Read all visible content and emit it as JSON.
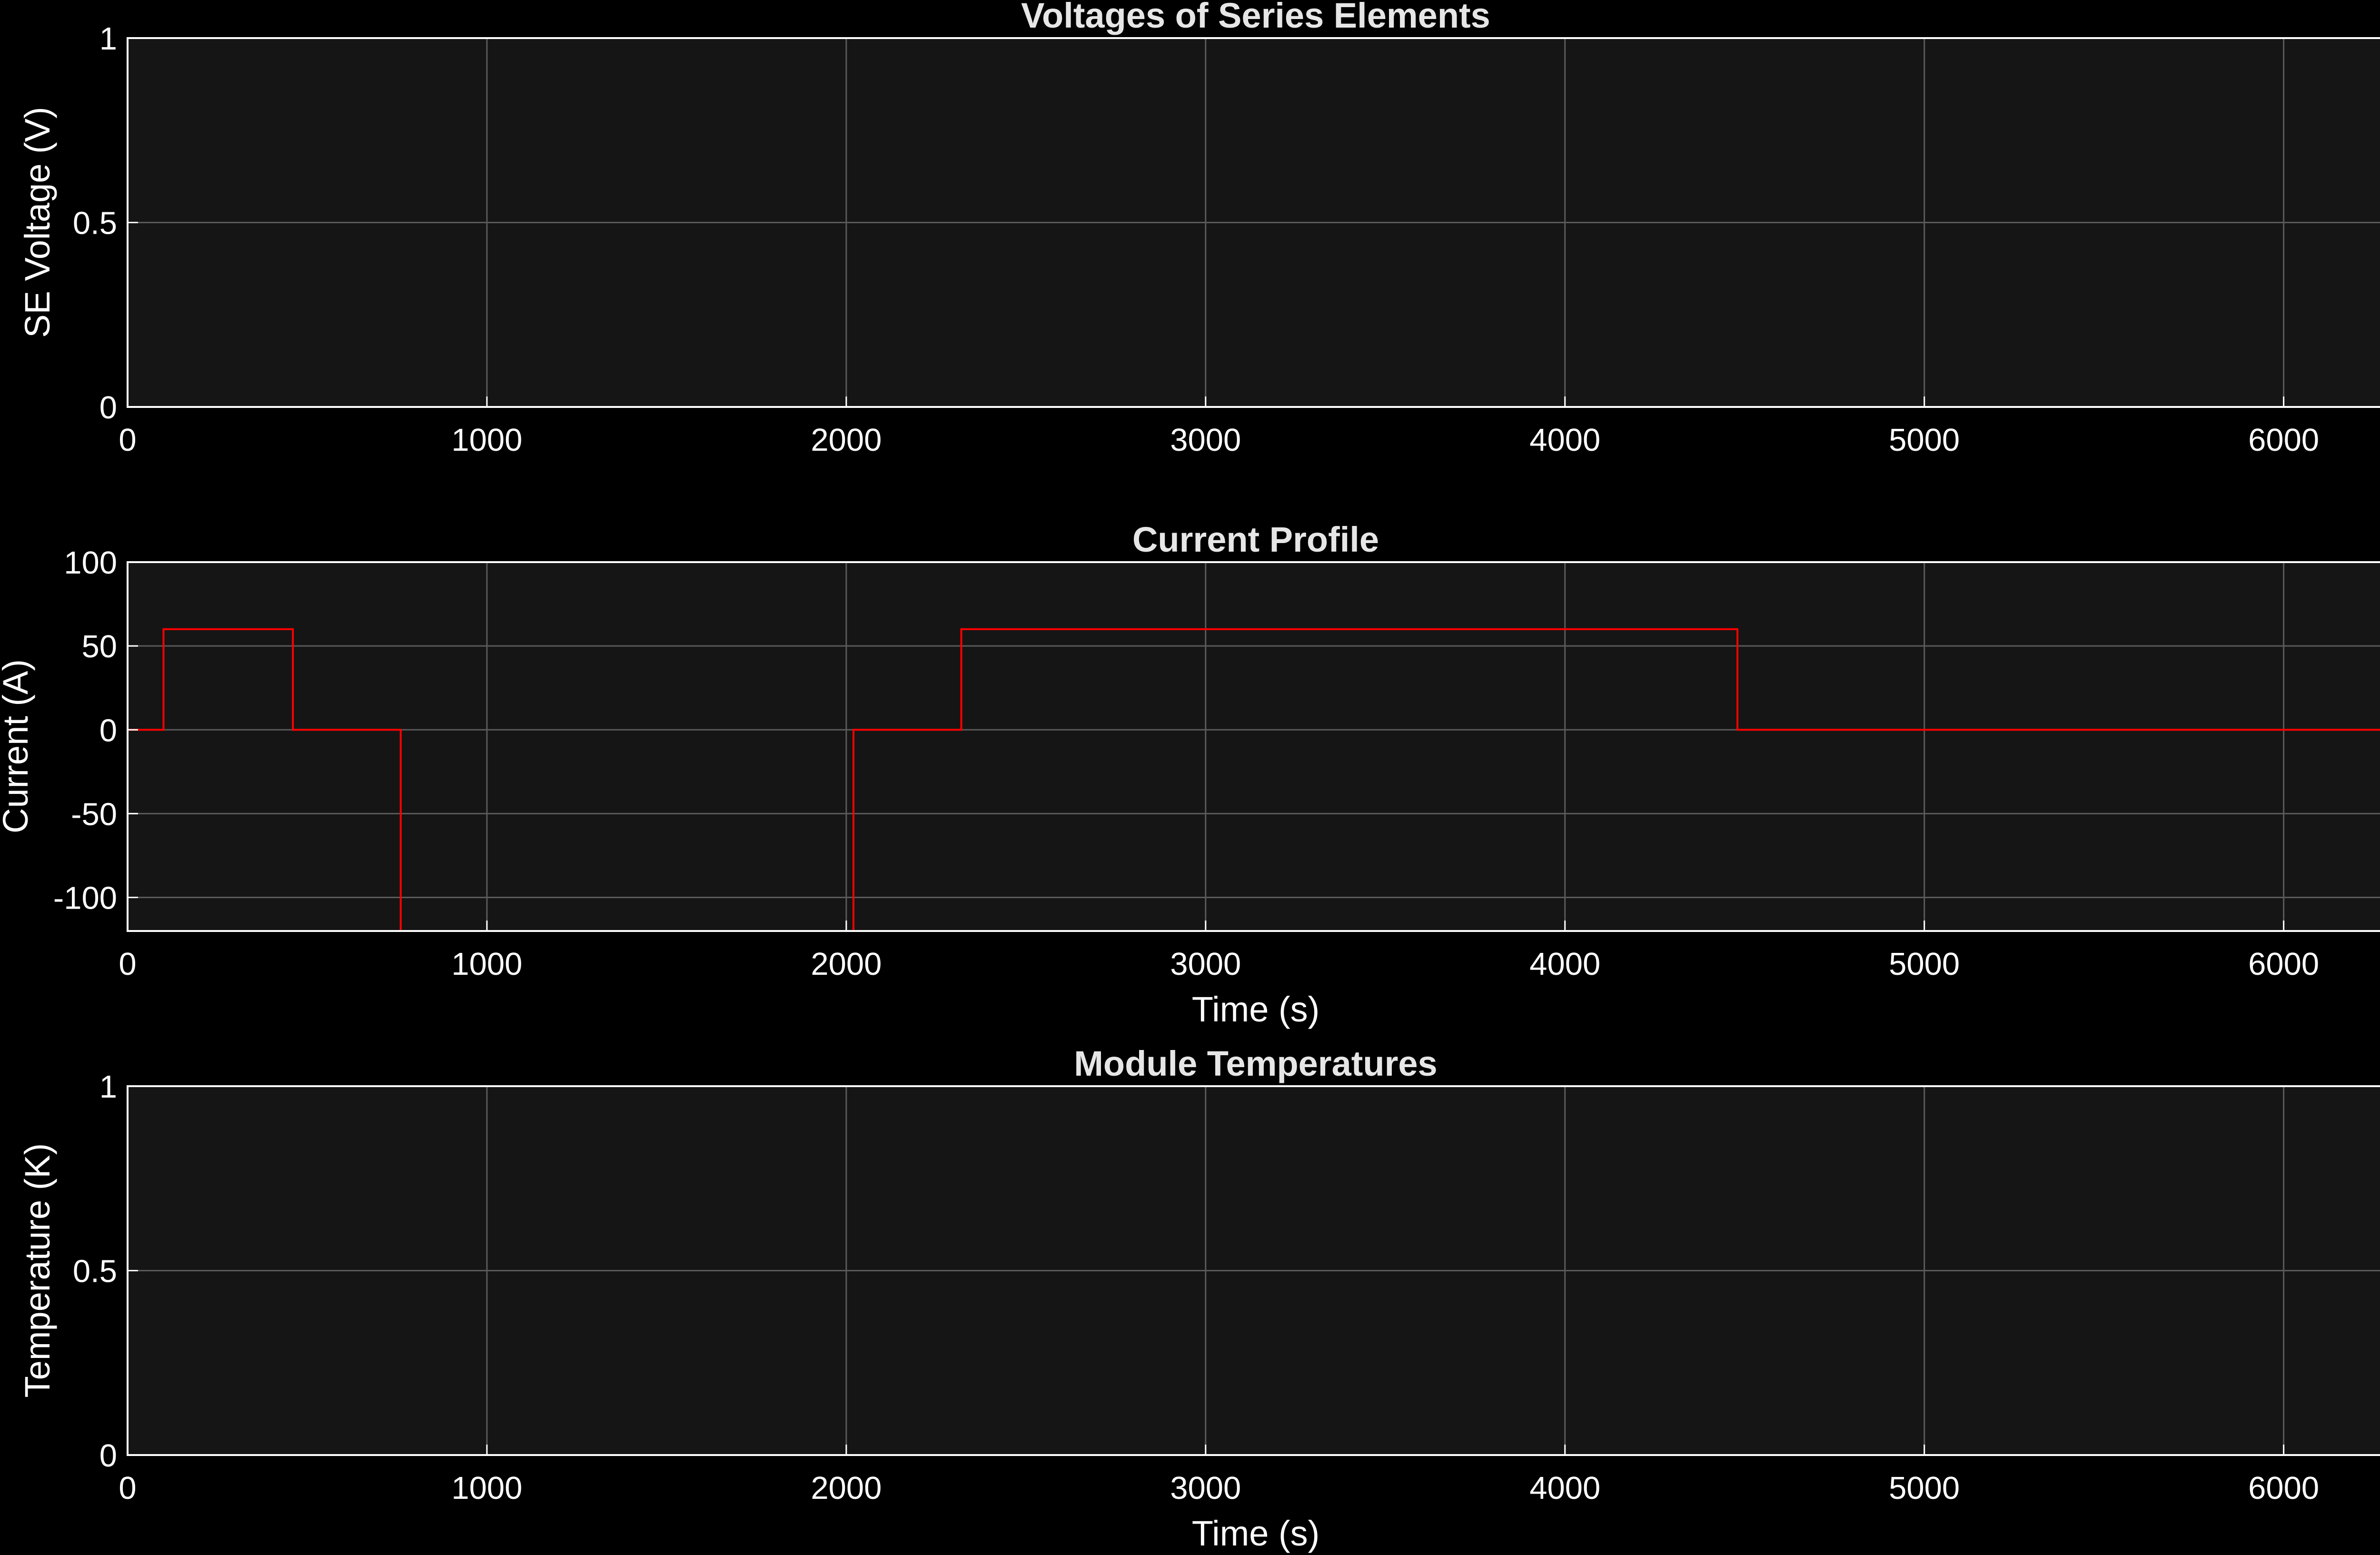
{
  "theme": {
    "background": "#000000",
    "axes_background": "#151515",
    "axes_color": "#ffffff",
    "grid_color": "#5a5a5a",
    "title_color": "#e6e6e6"
  },
  "chart_data": [
    {
      "type": "line",
      "title": "Voltages of Series Elements",
      "xlabel": "",
      "ylabel": "SE Voltage (V)",
      "xlim": [
        0,
        6280
      ],
      "ylim": [
        0,
        1
      ],
      "xticks": [
        0,
        1000,
        2000,
        3000,
        4000,
        5000,
        6000
      ],
      "yticks": [
        0,
        0.5,
        1
      ],
      "grid": true,
      "series": []
    },
    {
      "type": "line",
      "title": "Current Profile",
      "xlabel": "Time (s)",
      "ylabel": "Current (A)",
      "xlim": [
        0,
        6280
      ],
      "ylim": [
        -120,
        100
      ],
      "xticks": [
        0,
        1000,
        2000,
        3000,
        4000,
        5000,
        6000
      ],
      "yticks": [
        -100,
        -50,
        0,
        50,
        100
      ],
      "grid": true,
      "series": [
        {
          "color": "#ff0000",
          "x": [
            0,
            100,
            100,
            460,
            460,
            760,
            760,
            2020,
            2020,
            2320,
            2320,
            4480,
            4480,
            6280
          ],
          "y": [
            0,
            0,
            60,
            60,
            0,
            0,
            -120,
            -120,
            0,
            0,
            60,
            60,
            0,
            0
          ]
        }
      ]
    },
    {
      "type": "line",
      "title": "Module Temperatures",
      "xlabel": "Time (s)",
      "ylabel": "Temperature (K)",
      "xlim": [
        0,
        6280
      ],
      "ylim": [
        0,
        1
      ],
      "xticks": [
        0,
        1000,
        2000,
        3000,
        4000,
        5000,
        6000
      ],
      "yticks": [
        0,
        0.5,
        1
      ],
      "grid": true,
      "series": []
    }
  ]
}
